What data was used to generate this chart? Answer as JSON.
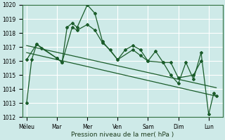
{
  "title": "",
  "xlabel": "Pression niveau de la mer( hPa )",
  "bg_color": "#ceeae8",
  "grid_color": "#ffffff",
  "line_color": "#1a5c2a",
  "ylim": [
    1012,
    1020
  ],
  "yticks": [
    1012,
    1013,
    1014,
    1015,
    1016,
    1017,
    1018,
    1019,
    1020
  ],
  "xtick_labels": [
    "Méleu",
    "Mar",
    "Mer",
    "Ven",
    "Sam",
    "Dim",
    "Lun"
  ],
  "xtick_positions": [
    0,
    24,
    48,
    72,
    96,
    120,
    144
  ],
  "xlim": [
    -3,
    155
  ],
  "series_main": {
    "x": [
      0,
      4,
      8,
      24,
      28,
      32,
      36,
      40,
      48,
      54,
      60,
      72,
      78,
      84,
      90,
      96,
      102,
      108,
      114,
      120,
      126,
      132,
      138,
      144,
      148,
      150
    ],
    "y": [
      1013.0,
      1016.1,
      1017.2,
      1016.2,
      1015.9,
      1018.4,
      1018.7,
      1018.4,
      1020.0,
      1019.4,
      1017.4,
      1016.1,
      1016.8,
      1017.1,
      1016.8,
      1016.0,
      1016.7,
      1015.9,
      1015.0,
      1014.4,
      1015.9,
      1014.7,
      1016.6,
      1012.2,
      1013.7,
      1013.5
    ]
  },
  "series_second": {
    "x": [
      0,
      8,
      12,
      24,
      28,
      36,
      40,
      48,
      54,
      60,
      66,
      72,
      84,
      90,
      96,
      108,
      114,
      120,
      132,
      138
    ],
    "y": [
      1016.1,
      1017.2,
      1016.9,
      1016.2,
      1015.9,
      1018.4,
      1018.2,
      1018.6,
      1018.2,
      1017.3,
      1016.8,
      1016.1,
      1016.8,
      1016.4,
      1016.0,
      1015.9,
      1015.9,
      1014.8,
      1015.0,
      1016.0
    ]
  },
  "trend1": {
    "x": [
      0,
      150
    ],
    "y": [
      1017.1,
      1014.1
    ]
  },
  "trend2": {
    "x": [
      0,
      150
    ],
    "y": [
      1016.6,
      1013.5
    ]
  }
}
